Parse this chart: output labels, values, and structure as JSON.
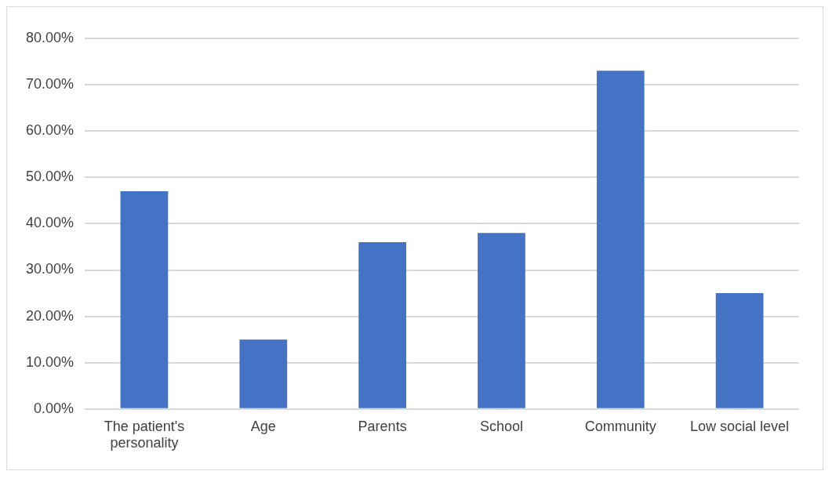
{
  "chart_data": {
    "type": "bar",
    "categories": [
      "The patient's personality",
      "Age",
      "Parents",
      "School",
      "Community",
      "Low social level"
    ],
    "values": [
      47,
      15,
      36,
      38,
      73,
      25
    ],
    "color": "#4472c4",
    "ylim": [
      0,
      80
    ],
    "yticks": [
      {
        "value": 0,
        "label": "0.00%"
      },
      {
        "value": 10,
        "label": "10.00%"
      },
      {
        "value": 20,
        "label": "20.00%"
      },
      {
        "value": 30,
        "label": "30.00%"
      },
      {
        "value": 40,
        "label": "40.00%"
      },
      {
        "value": 50,
        "label": "50.00%"
      },
      {
        "value": 60,
        "label": "60.00%"
      },
      {
        "value": 70,
        "label": "70.00%"
      },
      {
        "value": 80,
        "label": "80.00%"
      }
    ],
    "grid": "y",
    "legend": false
  }
}
